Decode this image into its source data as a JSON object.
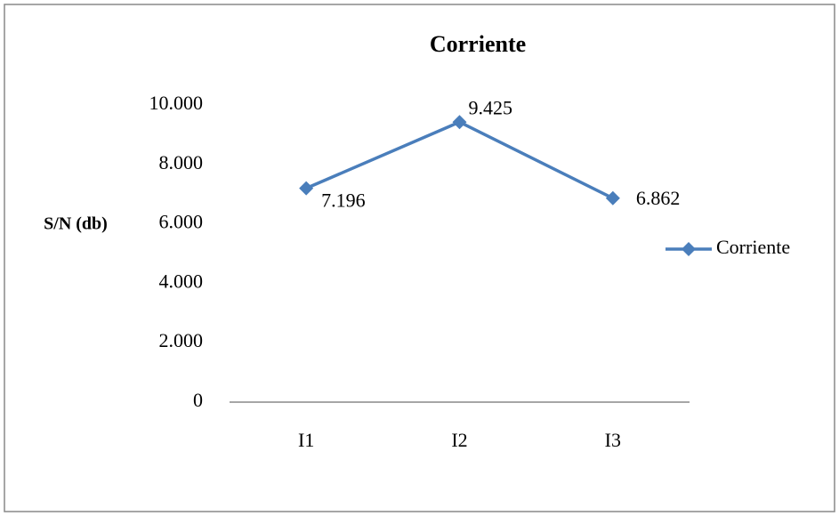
{
  "chart_data": {
    "type": "line",
    "title": "Corriente",
    "ylabel": "S/N (db)",
    "categories": [
      "I1",
      "I2",
      "I3"
    ],
    "series": [
      {
        "name": "Corriente",
        "color": "#4a7ebb",
        "values": [
          7.196,
          9.425,
          6.862
        ]
      }
    ],
    "ylim": [
      0,
      10
    ],
    "yticks": [
      0,
      {
        "value": 2,
        "label": "2.000"
      },
      {
        "value": 4,
        "label": "4.000"
      },
      {
        "value": 6,
        "label": "6.000"
      },
      {
        "value": 8,
        "label": "8.000"
      },
      {
        "value": 10,
        "label": "10.000"
      }
    ],
    "grid": false,
    "legend": "right"
  }
}
